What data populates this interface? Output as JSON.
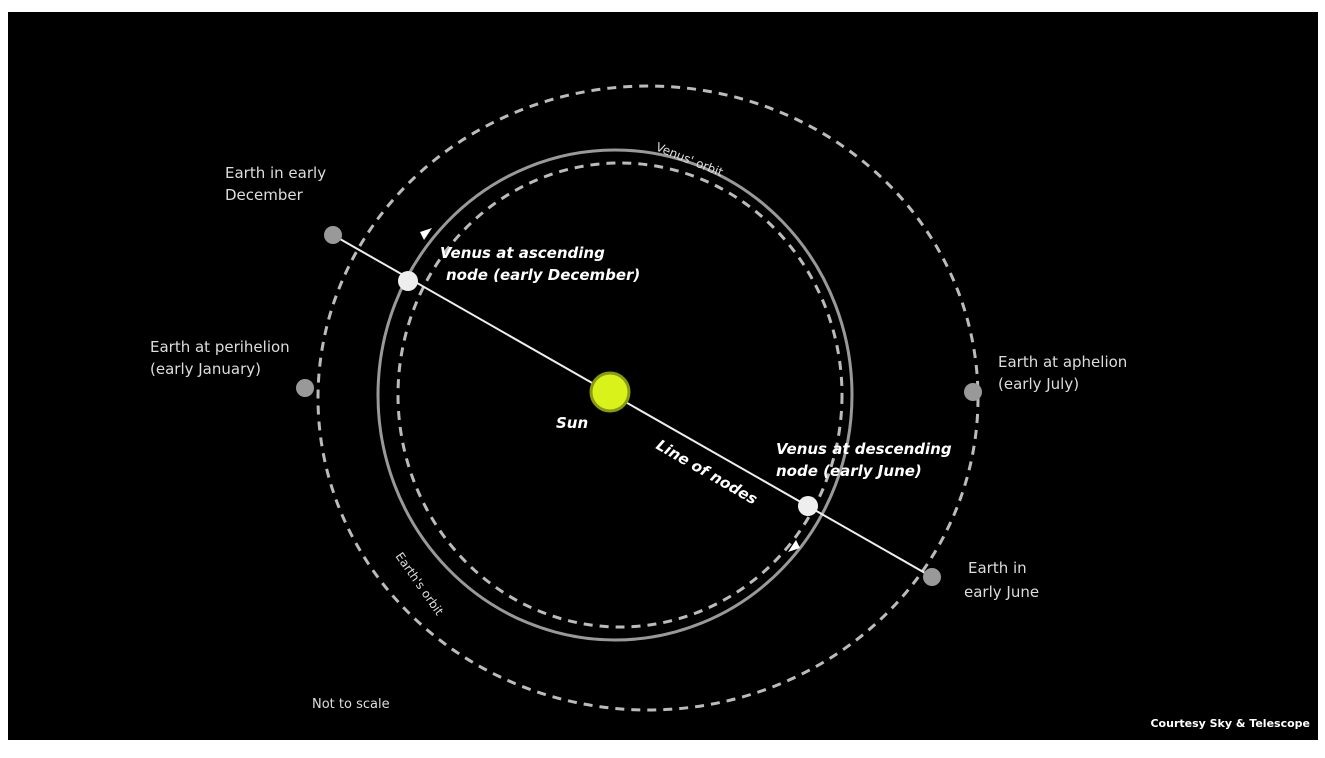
{
  "diagram": {
    "labels": {
      "earth_december": [
        "Earth in early",
        "December"
      ],
      "venus_ascending": [
        "Venus at ascending",
        "node (early December)"
      ],
      "earth_perihelion": [
        "Earth at perihelion",
        "(early January)"
      ],
      "earth_aphelion": [
        "Earth at aphelion",
        "(early July)"
      ],
      "sun": "Sun",
      "line_of_nodes": "Line of nodes",
      "venus_descending": [
        "Venus at descending",
        "node (early June)"
      ],
      "earth_june": [
        "Earth in",
        "early June"
      ],
      "venus_orbit": "Venus' orbit",
      "earth_orbit": "Earth's orbit",
      "scale_note": "Not to scale",
      "credit": "Courtesy Sky & Telescope"
    }
  }
}
